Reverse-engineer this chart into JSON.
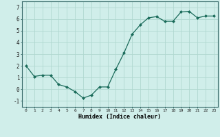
{
  "x": [
    0,
    1,
    2,
    3,
    4,
    5,
    6,
    7,
    8,
    9,
    10,
    11,
    12,
    13,
    14,
    15,
    16,
    17,
    18,
    19,
    20,
    21,
    22,
    23
  ],
  "y": [
    2.0,
    1.1,
    1.2,
    1.2,
    0.4,
    0.2,
    -0.2,
    -0.75,
    -0.5,
    0.2,
    0.2,
    1.7,
    3.1,
    4.7,
    5.5,
    6.1,
    6.2,
    5.8,
    5.8,
    6.6,
    6.65,
    6.1,
    6.25,
    6.25
  ],
  "xlabel": "Humidex (Indice chaleur)",
  "ylim": [
    -1.5,
    7.5
  ],
  "xlim": [
    -0.5,
    23.5
  ],
  "yticks": [
    -1,
    0,
    1,
    2,
    3,
    4,
    5,
    6,
    7
  ],
  "xticks": [
    0,
    1,
    2,
    3,
    4,
    5,
    6,
    7,
    8,
    9,
    10,
    11,
    12,
    13,
    14,
    15,
    16,
    17,
    18,
    19,
    20,
    21,
    22,
    23
  ],
  "xtick_labels": [
    "0",
    "1",
    "2",
    "3",
    "4",
    "5",
    "6",
    "7",
    "8",
    "9",
    "10",
    "11",
    "12",
    "13",
    "14",
    "15",
    "16",
    "17",
    "18",
    "19",
    "20",
    "21",
    "22",
    "23"
  ],
  "line_color": "#1a6b5a",
  "marker_color": "#1a6b5a",
  "bg_color": "#d0eeea",
  "grid_color": "#b0d8d0",
  "axis_color": "#336666"
}
